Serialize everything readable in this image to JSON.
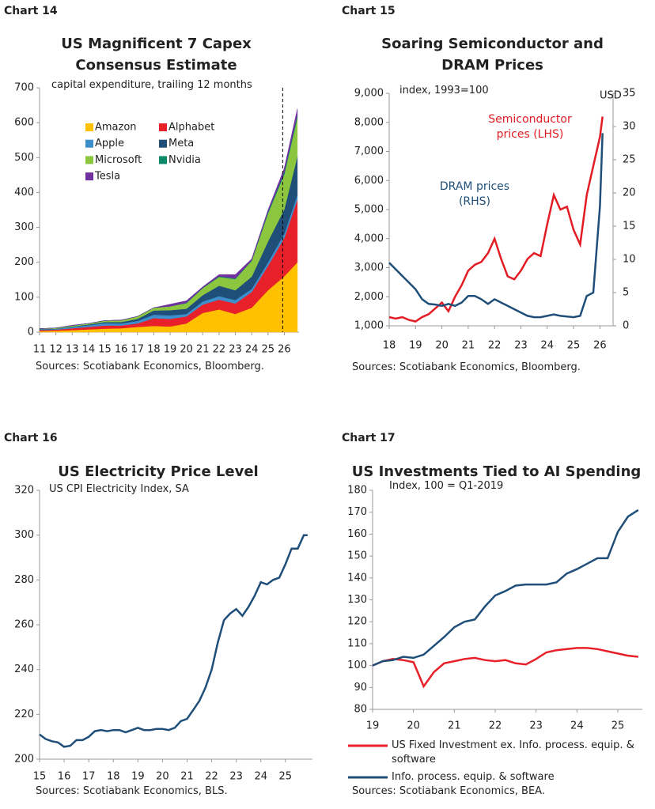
{
  "chart_data": [
    {
      "type": "stacked_area",
      "chart_label": "Chart 14",
      "title": "US Magnificent 7 Capex Consensus Estimate",
      "subtitle": "capital expenditure, trailing 12 months",
      "source": "Sources: Scotiabank Economics, Bloomberg.",
      "x": [
        11,
        12,
        13,
        14,
        15,
        16,
        17,
        18,
        19,
        20,
        21,
        22,
        23,
        24,
        25,
        26,
        26.8
      ],
      "xlim": [
        11,
        26.9
      ],
      "xticks": [
        11,
        12,
        13,
        14,
        15,
        16,
        17,
        18,
        19,
        20,
        21,
        22,
        23,
        24,
        25,
        26
      ],
      "ylim": [
        0,
        700
      ],
      "yticks": [
        0,
        100,
        200,
        300,
        400,
        500,
        600,
        700
      ],
      "vline": 25.9,
      "legend": "upper left",
      "series": [
        {
          "name": "Amazon",
          "color": "#ffc000",
          "values": [
            3,
            4,
            6,
            8,
            10,
            11,
            15,
            18,
            16,
            25,
            55,
            65,
            52,
            70,
            120,
            160,
            200
          ]
        },
        {
          "name": "Alphabet",
          "color": "#e8202a",
          "values": [
            3,
            3,
            5,
            7,
            9,
            8,
            10,
            22,
            22,
            20,
            24,
            28,
            30,
            45,
            70,
            110,
            180
          ]
        },
        {
          "name": "Apple",
          "color": "#3d8fcc",
          "values": [
            2,
            2,
            4,
            5,
            7,
            6,
            7,
            10,
            10,
            7,
            9,
            10,
            10,
            9,
            10,
            12,
            14
          ]
        },
        {
          "name": "Meta",
          "color": "#1f4e79",
          "values": [
            1,
            1,
            1,
            2,
            3,
            4,
            6,
            12,
            15,
            15,
            18,
            30,
            28,
            35,
            60,
            70,
            110
          ]
        },
        {
          "name": "Microsoft",
          "color": "#8cc63f",
          "values": [
            1,
            2,
            3,
            3,
            4,
            5,
            7,
            8,
            11,
            16,
            20,
            25,
            32,
            45,
            80,
            100,
            110
          ]
        },
        {
          "name": "Nvidia",
          "color": "#0a8a6a",
          "values": [
            0,
            0,
            0,
            0,
            0,
            0,
            0,
            0,
            0,
            1,
            1,
            2,
            2,
            2,
            4,
            6,
            8
          ]
        },
        {
          "name": "Tesla",
          "color": "#7030a0",
          "values": [
            0,
            0,
            1,
            0,
            0,
            1,
            0,
            0,
            6,
            6,
            3,
            5,
            11,
            4,
            6,
            12,
            18
          ]
        }
      ]
    },
    {
      "type": "dual_line",
      "chart_label": "Chart 15",
      "title": "Soaring Semiconductor and DRAM Prices",
      "subtitle": "index, 1993=100",
      "y2label": "USD",
      "source": "Sources: Scotiabank Economics, Bloomberg.",
      "x": [
        18,
        18.25,
        18.5,
        18.75,
        19,
        19.25,
        19.5,
        19.75,
        20,
        20.25,
        20.5,
        20.75,
        21,
        21.25,
        21.5,
        21.75,
        22,
        22.25,
        22.5,
        22.75,
        23,
        23.25,
        23.5,
        23.75,
        24,
        24.25,
        24.5,
        24.75,
        25,
        25.25,
        25.5,
        25.75,
        26,
        26.1
      ],
      "xlim": [
        18,
        26.5
      ],
      "xticks": [
        18,
        19,
        20,
        21,
        22,
        23,
        24,
        25,
        26
      ],
      "ylim": [
        1000,
        9000
      ],
      "yticks": [
        {
          "value": 1000,
          "label": "1,000"
        },
        {
          "value": 2000,
          "label": "2,000"
        },
        {
          "value": 3000,
          "label": "3,000"
        },
        {
          "value": 4000,
          "label": "4,000"
        },
        {
          "value": 5000,
          "label": "5,000"
        },
        {
          "value": 6000,
          "label": "6,000"
        },
        {
          "value": 7000,
          "label": "7,000"
        },
        {
          "value": 8000,
          "label": "8,000"
        },
        {
          "value": 9000,
          "label": "9,000"
        }
      ],
      "y2lim": [
        0,
        35
      ],
      "y2ticks": [
        0,
        5,
        10,
        15,
        20,
        25,
        30,
        35
      ],
      "series": [
        {
          "name": "Semiconductor prices (LHS)",
          "color": "#e31b23",
          "values": [
            1300,
            1250,
            1300,
            1200,
            1150,
            1300,
            1400,
            1600,
            1800,
            1500,
            2000,
            2400,
            2900,
            3100,
            3200,
            3500,
            4000,
            3300,
            2700,
            2600,
            2900,
            3300,
            3500,
            3400,
            4500,
            5500,
            5000,
            5100,
            4300,
            3800,
            5500,
            6500,
            7500,
            8200
          ]
        },
        {
          "name": "DRAM prices (RHS)",
          "color": "#1f4e79",
          "axis": "y2",
          "values": [
            9.5,
            8.5,
            7.5,
            6.5,
            5.5,
            4,
            3.3,
            3.2,
            3.0,
            3.3,
            3.0,
            3.5,
            4.5,
            4.5,
            4.0,
            3.3,
            4.0,
            3.5,
            3.0,
            2.5,
            2.0,
            1.5,
            1.3,
            1.3,
            1.5,
            1.7,
            1.5,
            1.4,
            1.3,
            1.5,
            4.5,
            5,
            18,
            29
          ]
        }
      ]
    },
    {
      "type": "line",
      "chart_label": "Chart 16",
      "title": "US Electricity Price Level",
      "subtitle": "US CPI Electricity Index, SA",
      "source": "Sources: Scotiabank Economics, BLS.",
      "x": [
        15,
        15.25,
        15.5,
        15.75,
        16,
        16.25,
        16.5,
        16.75,
        17,
        17.25,
        17.5,
        17.75,
        18,
        18.25,
        18.5,
        18.75,
        19,
        19.25,
        19.5,
        19.75,
        20,
        20.25,
        20.5,
        20.75,
        21,
        21.25,
        21.5,
        21.75,
        22,
        22.25,
        22.5,
        22.75,
        23,
        23.25,
        23.5,
        23.75,
        24,
        24.25,
        24.5,
        24.75,
        25,
        25.25,
        25.5,
        25.75,
        25.9
      ],
      "xlim": [
        15,
        26.1
      ],
      "xticks": [
        15,
        16,
        17,
        18,
        19,
        20,
        21,
        22,
        23,
        24,
        25
      ],
      "ylim": [
        200,
        320
      ],
      "yticks": [
        200,
        220,
        240,
        260,
        280,
        300,
        320
      ],
      "series": [
        {
          "name": "US CPI Electricity Index",
          "color": "#1f4e79",
          "values": [
            211,
            209,
            208,
            207.5,
            205.5,
            206,
            208.5,
            208.5,
            210,
            212.5,
            213,
            212.5,
            213,
            213,
            212,
            213,
            214,
            213,
            213,
            213.5,
            213.5,
            213,
            214,
            217,
            218,
            222,
            226,
            232,
            240,
            252,
            262,
            265,
            267,
            264,
            268,
            273,
            279,
            278,
            280,
            281,
            287,
            294,
            294,
            300,
            300
          ]
        }
      ]
    },
    {
      "type": "line",
      "chart_label": "Chart 17",
      "title": "US Investments Tied to AI Spending",
      "subtitle": "Index, 100 = Q1-2019",
      "source": "Sources: Scotiabank Economics, BEA.",
      "legend": "bottom",
      "x": [
        19,
        19.25,
        19.5,
        19.75,
        20,
        20.25,
        20.5,
        20.75,
        21,
        21.25,
        21.5,
        21.75,
        22,
        22.25,
        22.5,
        22.75,
        23,
        23.25,
        23.5,
        23.75,
        24,
        24.25,
        24.5,
        24.75,
        25,
        25.25,
        25.5
      ],
      "xlim": [
        19,
        25.6
      ],
      "xticks": [
        19,
        20,
        21,
        22,
        23,
        24,
        25
      ],
      "ylim": [
        80,
        180
      ],
      "yticks": [
        80,
        90,
        100,
        110,
        120,
        130,
        140,
        150,
        160,
        170,
        180
      ],
      "series": [
        {
          "name": "US Fixed Investment ex. Info. process. equip. & software",
          "color": "#e8202a",
          "values": [
            100,
            102,
            103,
            102.5,
            101.5,
            90.5,
            97,
            101,
            102,
            103,
            103.5,
            102.5,
            102,
            102.5,
            101,
            100.5,
            103,
            106,
            107,
            107.5,
            108,
            108,
            107.5,
            106.5,
            105.5,
            104.5,
            104
          ]
        },
        {
          "name": "Info. process. equip. & software",
          "color": "#1f4e79",
          "values": [
            100,
            102,
            102.5,
            104,
            103.5,
            105,
            109,
            113,
            117.5,
            120,
            121,
            127,
            132,
            134,
            136.5,
            137,
            137,
            137,
            138,
            142,
            144,
            146.5,
            149,
            149,
            161,
            168,
            171
          ]
        }
      ]
    }
  ]
}
